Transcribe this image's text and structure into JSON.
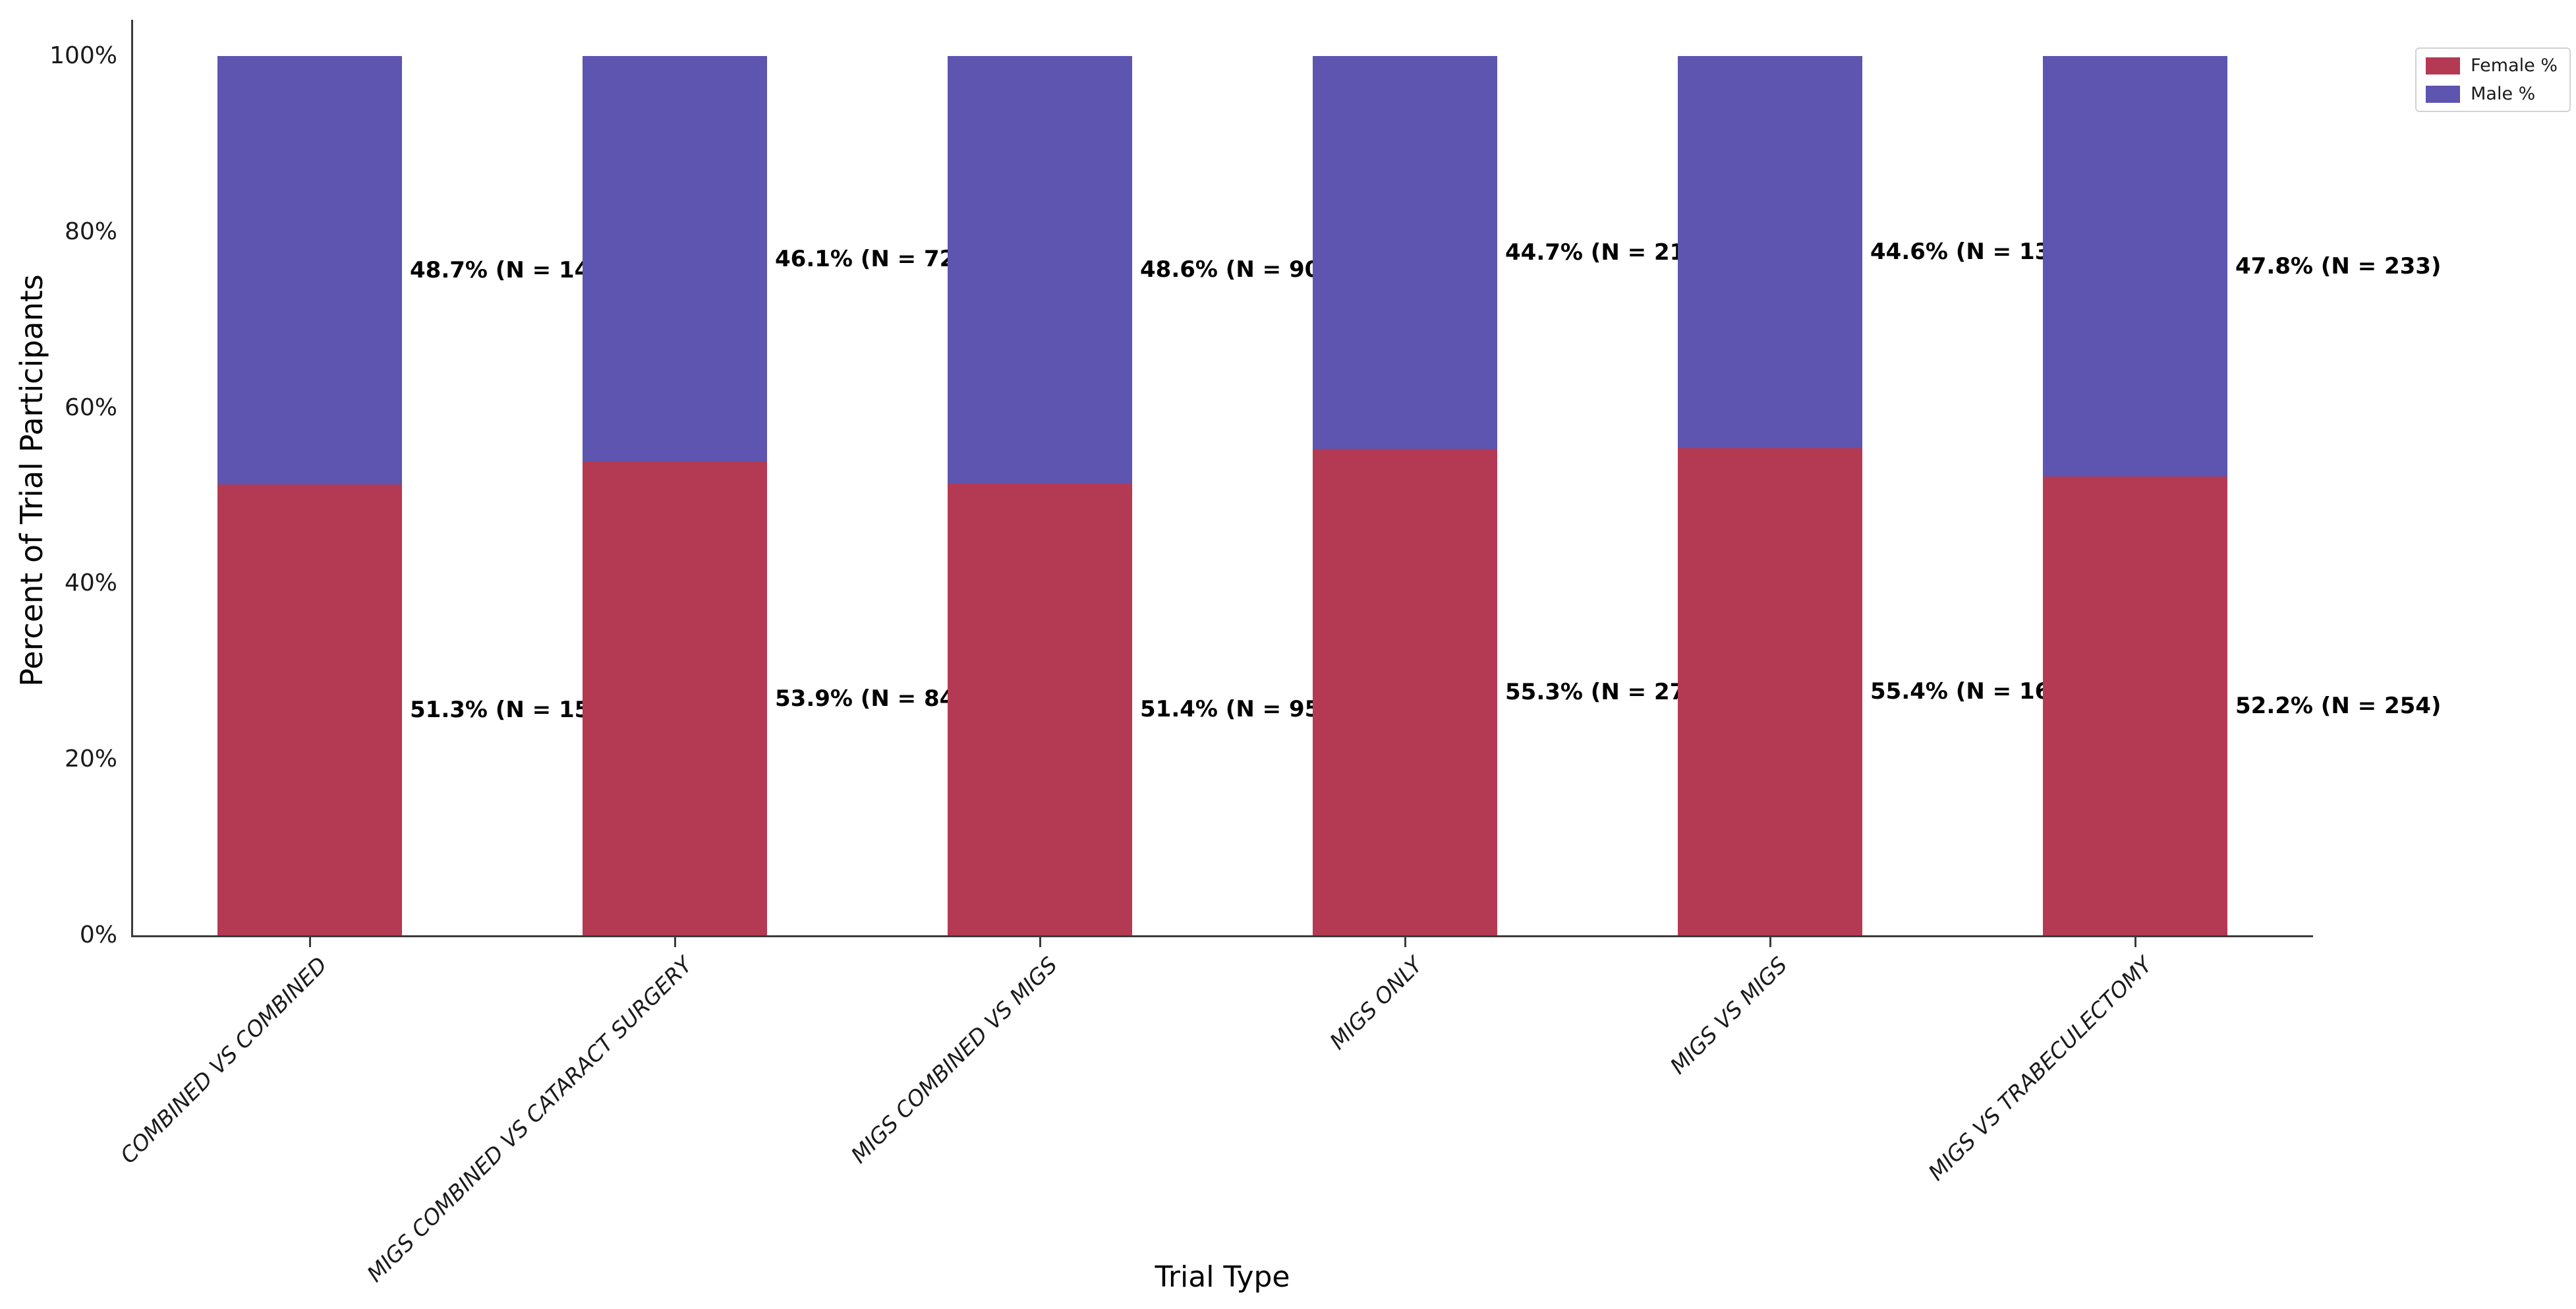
{
  "figure": {
    "ylabel": "Percent of Trial Participants",
    "xlabel": "Trial Type"
  },
  "legend": {
    "position": "upper right",
    "items": [
      {
        "label": "Female %",
        "color": "#b43a53"
      },
      {
        "label": "Male %",
        "color": "#5d55af"
      }
    ]
  },
  "chart_data": {
    "type": "bar",
    "stacked": true,
    "normalized_to_100_percent": true,
    "xlabel": "Trial Type",
    "ylabel": "Percent of Trial Participants",
    "categories": [
      "COMBINED VS COMBINED",
      "MIGS COMBINED VS CATARACT SURGERY",
      "MIGS COMBINED VS MIGS",
      "MIGS ONLY",
      "MIGS VS MIGS",
      "MIGS VS TRABECULECTOMY"
    ],
    "series": [
      {
        "name": "Female %",
        "color": "#b43a53",
        "values": [
          51.3,
          53.9,
          51.4,
          55.3,
          55.4,
          52.2
        ],
        "counts": [
          157,
          846,
          95,
          270,
          163,
          254
        ],
        "labels": [
          "51.3% (N = 157)",
          "53.9% (N = 846)",
          "51.4% (N = 95)",
          "55.3% (N = 270)",
          "55.4% (N = 163)",
          "52.2% (N = 254)"
        ]
      },
      {
        "name": "Male %",
        "color": "#5d55af",
        "values": [
          48.7,
          46.1,
          48.6,
          44.7,
          44.6,
          47.8
        ],
        "counts": [
          149,
          724,
          90,
          218,
          131,
          233
        ],
        "labels": [
          "48.7% (N = 149)",
          "46.1% (N = 724)",
          "48.6% (N = 90)",
          "44.7% (N = 218)",
          "44.6% (N = 131)",
          "47.8% (N = 233)"
        ]
      }
    ],
    "yticks": [
      {
        "label": "0%",
        "value": 0
      },
      {
        "label": "20%",
        "value": 20
      },
      {
        "label": "40%",
        "value": 40
      },
      {
        "label": "60%",
        "value": 60
      },
      {
        "label": "80%",
        "value": 80
      },
      {
        "label": "100%",
        "value": 100
      }
    ],
    "ylim": [
      0,
      100
    ],
    "grid": false,
    "legend_position": "upper right"
  }
}
